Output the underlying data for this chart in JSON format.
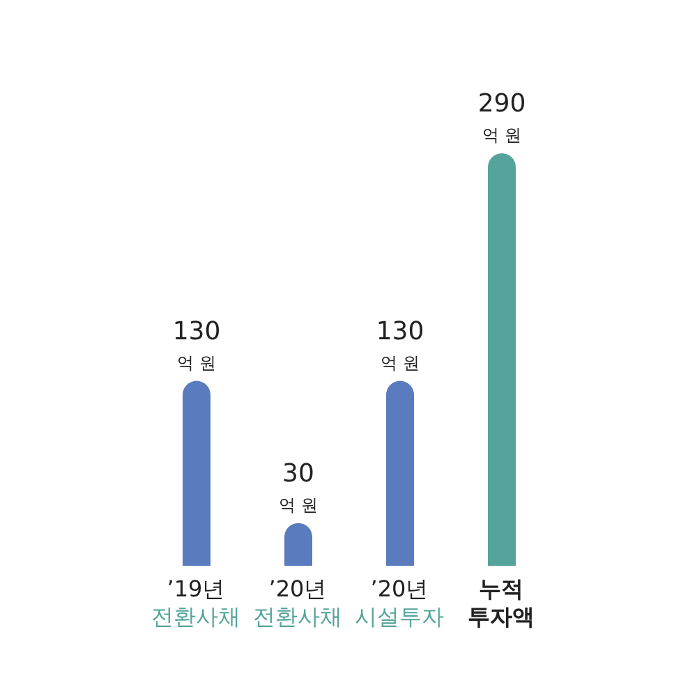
{
  "chart_data": {
    "type": "bar",
    "categories": [
      "’19년\n전환사채",
      "’20년\n전환사채",
      "’20년\n시설투자",
      "누적\n투자액"
    ],
    "values": [
      130,
      30,
      130,
      290
    ],
    "colors": [
      "#5b7bbf",
      "#5b7bbf",
      "#5b7bbf",
      "#55a49c"
    ],
    "value_labels": [
      "130\n억 원",
      "30\n억 원",
      "130\n억 원",
      "290\n억 원"
    ]
  }
}
